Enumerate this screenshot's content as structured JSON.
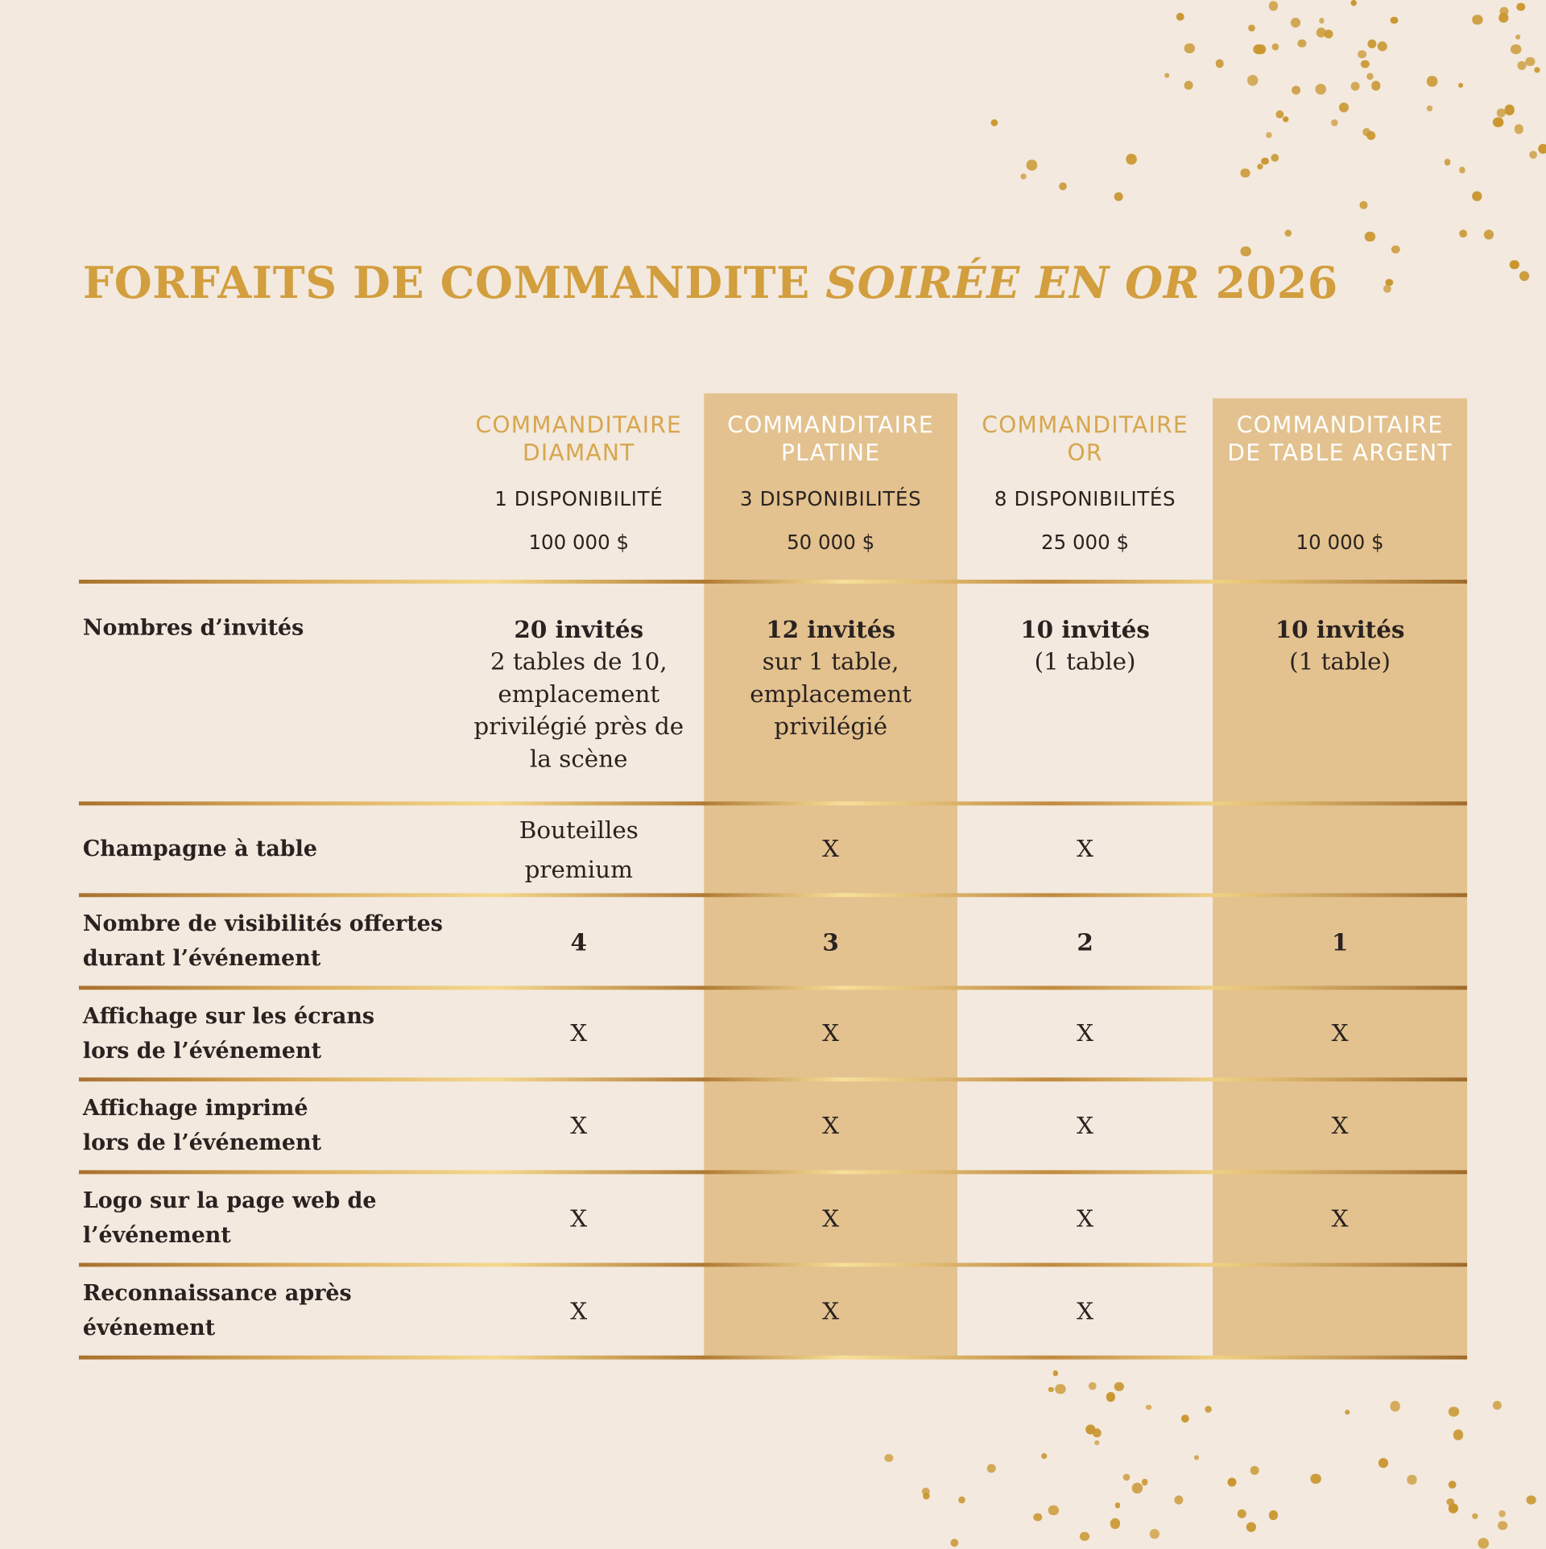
{
  "title": {
    "part1": "FORFAITS DE COMMANDITE ",
    "part2": "SOIRÉE EN OR",
    "part3": " 2026"
  },
  "colors": {
    "background": "#F3E9DE",
    "shade": "#E3C28F",
    "gold": "#D29E3E"
  },
  "columns": [
    {
      "name": [
        "COMMANDITAIRE",
        "DIAMANT"
      ],
      "availability": "1 DISPONIBILITÉ",
      "price": "100 000 $"
    },
    {
      "name": [
        "COMMANDITAIRE",
        "PLATINE"
      ],
      "availability": "3 DISPONIBILITÉS",
      "price": "50 000 $"
    },
    {
      "name": [
        "COMMANDITAIRE",
        "OR"
      ],
      "availability": "8 DISPONIBILITÉS",
      "price": "25 000 $"
    },
    {
      "name": [
        "COMMANDITAIRE",
        "DE TABLE ARGENT"
      ],
      "availability": "",
      "price": "10 000 $"
    }
  ],
  "rows": [
    {
      "label": [
        "Nombres d’invités"
      ],
      "cells": [
        {
          "bold": "20 invités",
          "lines": [
            "2 tables de 10,",
            "emplacement",
            "privilégié près de",
            "la scène"
          ]
        },
        {
          "bold": "12 invités",
          "lines": [
            "sur 1 table,",
            "emplacement",
            "privilégié"
          ]
        },
        {
          "bold": "10 invités",
          "lines": [
            "(1 table)"
          ]
        },
        {
          "bold": "10 invités",
          "lines": [
            "(1 table)"
          ]
        }
      ]
    },
    {
      "label": [
        "Champagne à table"
      ],
      "cells": [
        {
          "lines": [
            "Bouteilles",
            "premium"
          ]
        },
        {
          "lines": [
            "X"
          ]
        },
        {
          "lines": [
            "X"
          ]
        },
        {
          "lines": [
            ""
          ]
        }
      ]
    },
    {
      "label": [
        "Nombre de visibilités offertes",
        "durant l’événement"
      ],
      "cells": [
        {
          "bold": "4"
        },
        {
          "bold": "3"
        },
        {
          "bold": "2"
        },
        {
          "bold": "1"
        }
      ]
    },
    {
      "label": [
        "Affichage sur les écrans",
        "lors de l’événement"
      ],
      "cells": [
        {
          "lines": [
            "X"
          ]
        },
        {
          "lines": [
            "X"
          ]
        },
        {
          "lines": [
            "X"
          ]
        },
        {
          "lines": [
            "X"
          ]
        }
      ]
    },
    {
      "label": [
        "Affichage imprimé",
        "lors de l’événement"
      ],
      "cells": [
        {
          "lines": [
            "X"
          ]
        },
        {
          "lines": [
            "X"
          ]
        },
        {
          "lines": [
            "X"
          ]
        },
        {
          "lines": [
            "X"
          ]
        }
      ]
    },
    {
      "label": [
        "Logo sur la page web de",
        "l’événement"
      ],
      "cells": [
        {
          "lines": [
            "X"
          ]
        },
        {
          "lines": [
            "X"
          ]
        },
        {
          "lines": [
            "X"
          ]
        },
        {
          "lines": [
            "X"
          ]
        }
      ]
    },
    {
      "label": [
        "Reconnaissance après",
        "événement"
      ],
      "cells": [
        {
          "lines": [
            "X"
          ]
        },
        {
          "lines": [
            "X"
          ]
        },
        {
          "lines": [
            "X"
          ]
        },
        {
          "lines": [
            ""
          ]
        }
      ]
    }
  ]
}
